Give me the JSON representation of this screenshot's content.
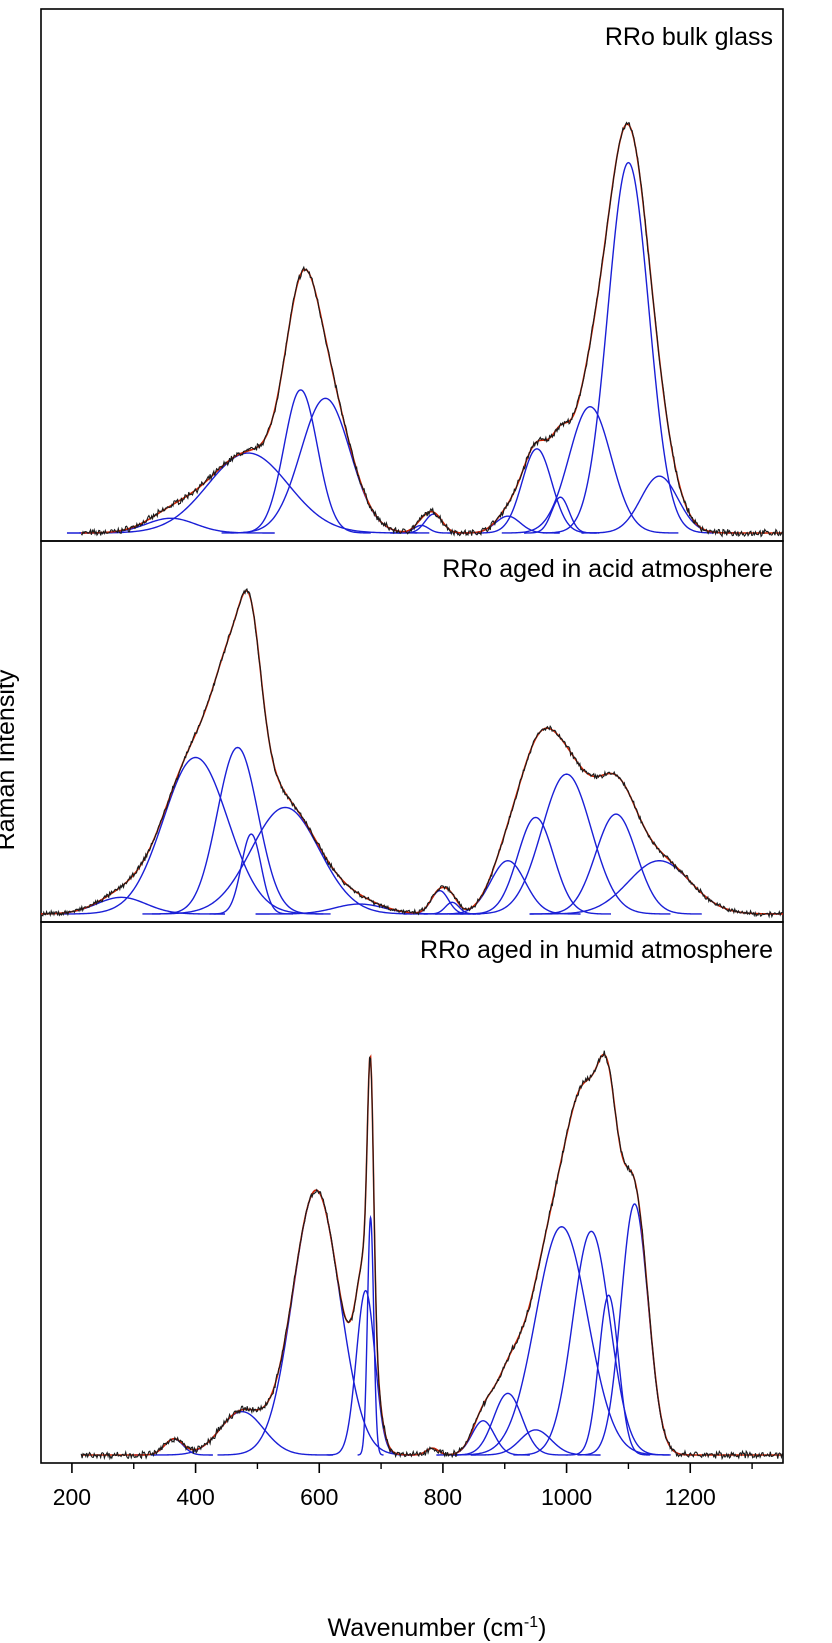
{
  "chart_data": {
    "type": "line",
    "title": "",
    "xlabel": "Wavenumber (cm-1)",
    "xlabel_parts": {
      "main": "Wavenumber (cm",
      "sup": "-1",
      "close": ")"
    },
    "ylabel": "Raman Intensity",
    "xlim": [
      150,
      1350
    ],
    "xticks": [
      200,
      400,
      600,
      800,
      1000,
      1200
    ],
    "xminor_ticks": [
      300,
      500,
      700,
      900,
      1100,
      1300
    ],
    "grid": false,
    "colors": {
      "spectrum": "#1a1a1a",
      "fit_envelope": "#cc2200",
      "components": "#1a1fd6",
      "axes": "#000000"
    },
    "panels": [
      {
        "title": "RRo bulk glass",
        "spectrum_range": [
          215,
          1350
        ],
        "ymax": 1.15,
        "components": [
          {
            "center": 360,
            "height": 0.035,
            "width": 40
          },
          {
            "center": 485,
            "height": 0.19,
            "width": 65
          },
          {
            "center": 570,
            "height": 0.34,
            "width": 27
          },
          {
            "center": 610,
            "height": 0.32,
            "width": 40
          },
          {
            "center": 765,
            "height": 0.018,
            "width": 12
          },
          {
            "center": 785,
            "height": 0.045,
            "width": 14
          },
          {
            "center": 905,
            "height": 0.04,
            "width": 20
          },
          {
            "center": 952,
            "height": 0.2,
            "width": 24
          },
          {
            "center": 990,
            "height": 0.085,
            "width": 14
          },
          {
            "center": 1038,
            "height": 0.3,
            "width": 34
          },
          {
            "center": 1100,
            "height": 0.88,
            "width": 33
          },
          {
            "center": 1150,
            "height": 0.135,
            "width": 30
          }
        ]
      },
      {
        "title": "RRo aged in acid atmosphere",
        "spectrum_range": [
          150,
          1350
        ],
        "ymax": 1.0,
        "components": [
          {
            "center": 280,
            "height": 0.05,
            "width": 40
          },
          {
            "center": 400,
            "height": 0.47,
            "width": 52
          },
          {
            "center": 468,
            "height": 0.5,
            "width": 33
          },
          {
            "center": 490,
            "height": 0.24,
            "width": 16
          },
          {
            "center": 545,
            "height": 0.32,
            "width": 55
          },
          {
            "center": 665,
            "height": 0.03,
            "width": 40
          },
          {
            "center": 795,
            "height": 0.07,
            "width": 14
          },
          {
            "center": 815,
            "height": 0.035,
            "width": 11
          },
          {
            "center": 905,
            "height": 0.16,
            "width": 28
          },
          {
            "center": 950,
            "height": 0.29,
            "width": 29
          },
          {
            "center": 1000,
            "height": 0.42,
            "width": 40
          },
          {
            "center": 1080,
            "height": 0.3,
            "width": 33
          },
          {
            "center": 1150,
            "height": 0.16,
            "width": 50
          }
        ]
      },
      {
        "title": "RRo aged in humid atmosphere",
        "spectrum_range": [
          215,
          1350
        ],
        "ymax": 1.08,
        "components": [
          {
            "center": 365,
            "height": 0.035,
            "width": 15
          },
          {
            "center": 475,
            "height": 0.095,
            "width": 35
          },
          {
            "center": 595,
            "height": 0.58,
            "width": 38
          },
          {
            "center": 675,
            "height": 0.36,
            "width": 15
          },
          {
            "center": 683,
            "height": 0.52,
            "width": 5
          },
          {
            "center": 783,
            "height": 0.015,
            "width": 10
          },
          {
            "center": 865,
            "height": 0.075,
            "width": 18
          },
          {
            "center": 905,
            "height": 0.135,
            "width": 23
          },
          {
            "center": 950,
            "height": 0.055,
            "width": 25
          },
          {
            "center": 992,
            "height": 0.5,
            "width": 42
          },
          {
            "center": 1040,
            "height": 0.49,
            "width": 30
          },
          {
            "center": 1068,
            "height": 0.35,
            "width": 16
          },
          {
            "center": 1110,
            "height": 0.55,
            "width": 22
          }
        ]
      }
    ]
  }
}
